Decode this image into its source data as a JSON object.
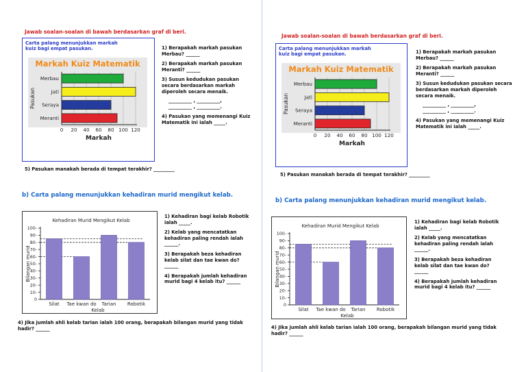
{
  "pages": [
    {
      "instruction": "Jawab soalan-soalan di bawah berdasarkan graf di beri.",
      "chart1_caption": "Carta palang menunjukkan markah kuiz bagi empat pasukan.",
      "questions1": [
        "1) Berapakah markah pasukan Merbau? ______",
        "2) Berapakah markah pasukan Meranti? ______",
        "3) Susun kedudukan pasukan secara berdasarkan markah diperoleh secara menaik.",
        "__________ , __________,",
        "__________ , __________.",
        "4) Pasukan yang memenangi Kuiz Matematik ini ialah _____."
      ],
      "question5": "5) Pasukan manakah berada di tempat terakhir? _________",
      "section_b_title": "b) Carta palang menunjukkan kehadiran murid mengikut kelab.",
      "questions2": [
        "1) Kehadiran bagi kelab Robotik ialah _____.",
        "2) Kelab yang mencatatkan kehadiran paling rendah ialah ______.",
        "3) Berapakah beza kehadiran kelab silat dan tae kwan do? ______",
        "4) Berapakah jumlah kehadiran murid bagi 4 kelab itu? ______"
      ],
      "question_final": "4) Jika jumlah ahli kelab tarian ialah 100 orang, berapakah bilangan murid yang tidak hadir? ______"
    },
    {
      "instruction": "Jawab soalan-soalan di bawah berdasarkan graf di beri.",
      "chart1_caption": "Carta palang menunjukkan markah kuiz bagi empat pasukan.",
      "questions1": [
        "1) Berapakah markah pasukan Merbau? ______",
        "2) Berapakah markah pasukan Meranti? ______",
        "3) Susun kedudukan pasukan secara berdasarkan markah diperoleh secara menaik.",
        "__________ , __________,",
        "__________ , __________.",
        "4) Pasukan yang memenangi Kuiz Matematik ini ialah _____."
      ],
      "question5": "5) Pasukan manakah berada di tempat terakhir? _________",
      "section_b_title": "b) Carta palang menunjukkan kehadiran murid mengikut kelab.",
      "questions2": [
        "1) Kehadiran bagi kelab Robotik ialah _____.",
        "2) Kelab yang mencatatkan kehadiran paling rendah ialah ______.",
        "3) Berapakah beza kehadiran kelab silat dan tae kwan do? ______",
        "4) Berapakah jumlah kehadiran murid bagi 4 kelab itu? ______"
      ],
      "question_final": "4) Jika jumlah ahli kelab tarian ialah 100 orang, berapakah bilangan murid yang tidak hadir? ______"
    }
  ],
  "chart_data": [
    {
      "type": "bar",
      "orientation": "horizontal",
      "title": "Markah Kuiz Matematik",
      "xlabel": "Markah",
      "ylabel": "Pasukan",
      "categories": [
        "Merbau",
        "Jati",
        "Seraya",
        "Meranti"
      ],
      "values": [
        100,
        120,
        80,
        90
      ],
      "colors": [
        "#1faa3c",
        "#f6ee1a",
        "#233c9e",
        "#e0262c"
      ],
      "xlim": [
        0,
        120
      ],
      "xticks": [
        "0",
        "20",
        "40",
        "60",
        "80",
        "100",
        "120"
      ],
      "grid": true
    },
    {
      "type": "bar",
      "orientation": "vertical",
      "title": "Kehadiran Murid Mengikut Kelab",
      "xlabel": "Kelab",
      "ylabel": "Bilangan murid",
      "categories": [
        "Silat",
        "Tae kwan do",
        "Tarian",
        "Robotik"
      ],
      "values": [
        85,
        60,
        90,
        80
      ],
      "color": "#8b7fc9",
      "ylim": [
        0,
        100
      ],
      "yticks": [
        "0",
        "10",
        "20",
        "30",
        "40",
        "50",
        "60",
        "70",
        "80",
        "90",
        "100"
      ],
      "reference_lines": [
        85,
        80,
        60
      ]
    }
  ]
}
